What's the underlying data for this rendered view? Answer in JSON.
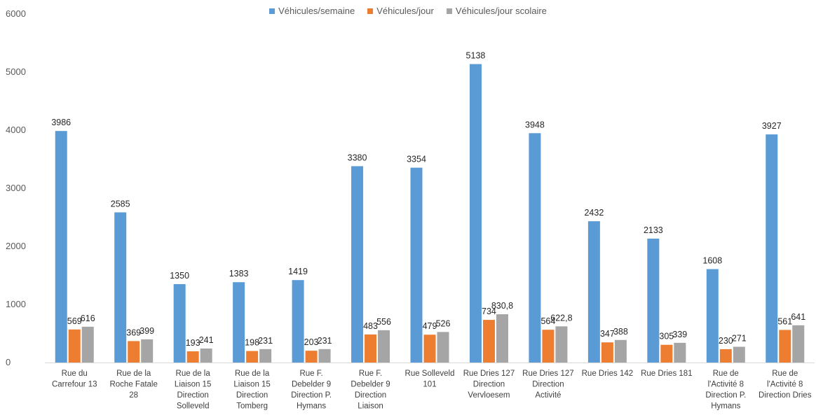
{
  "chart_data": {
    "type": "bar",
    "title": "",
    "xlabel": "",
    "ylabel": "",
    "ylim": [
      0,
      6000
    ],
    "yticks": [
      0,
      1000,
      2000,
      3000,
      4000,
      5000,
      6000
    ],
    "grid": false,
    "legend_position": "top",
    "categories": [
      [
        "Rue du",
        "Carrefour 13"
      ],
      [
        "Rue de la",
        "Roche Fatale",
        "28"
      ],
      [
        "Rue de la",
        "Liaison 15",
        "Direction",
        "Solleveld"
      ],
      [
        "Rue de la",
        "Liaison 15",
        "Direction",
        "Tomberg"
      ],
      [
        "Rue F.",
        "Debelder 9",
        "Direction P.",
        "Hymans"
      ],
      [
        "Rue F.",
        "Debelder 9",
        "Direction",
        "Liaison"
      ],
      [
        "Rue Solleveld",
        "101"
      ],
      [
        "Rue Dries 127",
        "Direction",
        "Vervloesem"
      ],
      [
        "Rue Dries 127",
        "Direction",
        "Activité"
      ],
      [
        "Rue Dries 142"
      ],
      [
        "Rue Dries 181"
      ],
      [
        "Rue de",
        "l'Activité 8",
        "Direction P.",
        "Hymans"
      ],
      [
        "Rue de",
        "l'Activité 8",
        "Direction Dries"
      ]
    ],
    "series": [
      {
        "name": "Véhicules/semaine",
        "color": "#5b9bd5",
        "values": [
          3986,
          2585,
          1350,
          1383,
          1419,
          3380,
          3354,
          5138,
          3948,
          2432,
          2133,
          1608,
          3927
        ],
        "labels": [
          "3986",
          "2585",
          "1350",
          "1383",
          "1419",
          "3380",
          "3354",
          "5138",
          "3948",
          "2432",
          "2133",
          "1608",
          "3927"
        ]
      },
      {
        "name": "Véhicules/jour",
        "color": "#ed7d31",
        "values": [
          569,
          369,
          193,
          198,
          203,
          483,
          479,
          734,
          564,
          347,
          305,
          230,
          561
        ],
        "labels": [
          "569",
          "369",
          "193",
          "198",
          "203",
          "483",
          "479",
          "734",
          "564",
          "347",
          "305",
          "230",
          "561"
        ]
      },
      {
        "name": "Véhicules/jour scolaire",
        "color": "#a5a5a5",
        "values": [
          616,
          399,
          241,
          231,
          231,
          556,
          526,
          830.8,
          622.8,
          388,
          339,
          271,
          641
        ],
        "labels": [
          "616",
          "399",
          "241",
          "231",
          "231",
          "556",
          "526",
          "830,8",
          "622,8",
          "388",
          "339",
          "271",
          "641"
        ]
      }
    ]
  }
}
